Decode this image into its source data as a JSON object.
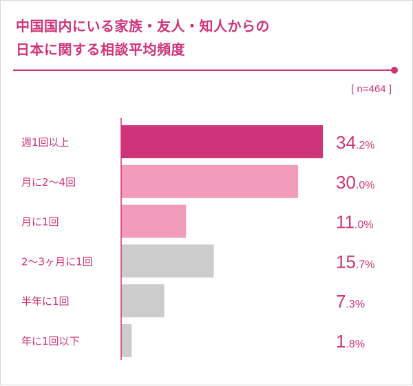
{
  "chart_data": {
    "type": "bar",
    "orientation": "horizontal",
    "title": "中国国内にいる家族・友人・知人からの\n日本に関する相談平均頻度",
    "title_lines": [
      "中国国内にいる家族・友人・知人からの",
      "日本に関する相談平均頻度"
    ],
    "sample_size": "[ n=464 ]",
    "categories": [
      "週1回以上",
      "月に2〜4回",
      "月に1回",
      "2〜3ヶ月に1回",
      "半年に1回",
      "年に1回以下"
    ],
    "values": [
      34.2,
      30.0,
      11.0,
      15.7,
      7.3,
      1.8
    ],
    "value_labels": [
      "34.2%",
      "30.0%",
      "11.0%",
      "15.7%",
      "7.3%",
      "1.8%"
    ],
    "unit": "%",
    "bar_colors": [
      "#cf3379",
      "#f29bbb",
      "#f29bbb",
      "#cccccc",
      "#cccccc",
      "#cccccc"
    ],
    "accent_color": "#cf3379",
    "grid": false,
    "legend": "none"
  }
}
